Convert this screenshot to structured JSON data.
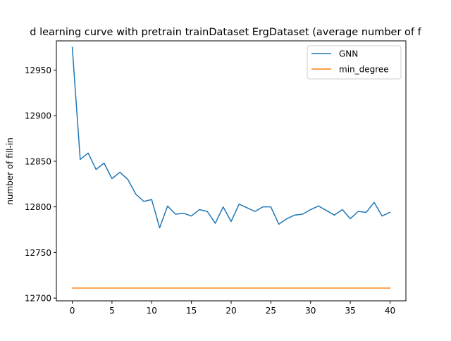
{
  "chart_data": {
    "type": "line",
    "title": "d learning curve with pretrain trainDataset ErgDataset (average number of f",
    "xlabel": "",
    "ylabel": "number of fill-in",
    "xlim": [
      -2,
      42
    ],
    "ylim": [
      12697,
      12982
    ],
    "xticks": [
      0,
      5,
      10,
      15,
      20,
      25,
      30,
      35,
      40
    ],
    "yticks": [
      12700,
      12750,
      12800,
      12850,
      12900,
      12950
    ],
    "grid": false,
    "legend": "top-right",
    "x": [
      0,
      1,
      2,
      3,
      4,
      5,
      6,
      7,
      8,
      9,
      10,
      11,
      12,
      13,
      14,
      15,
      16,
      17,
      18,
      19,
      20,
      21,
      22,
      23,
      24,
      25,
      26,
      27,
      28,
      29,
      30,
      31,
      32,
      33,
      34,
      35,
      36,
      37,
      38,
      39,
      40
    ],
    "series": [
      {
        "name": "GNN",
        "color": "#1f77b4",
        "values": [
          12975,
          12852,
          12859,
          12841,
          12848,
          12831,
          12838,
          12830,
          12814,
          12806,
          12808,
          12777,
          12801,
          12792,
          12793,
          12790,
          12797,
          12795,
          12782,
          12800,
          12784,
          12803,
          12799,
          12795,
          12800,
          12800,
          12781,
          12787,
          12791,
          12792,
          12797,
          12801,
          12796,
          12791,
          12797,
          12787,
          12795,
          12794,
          12805,
          12790,
          12794
        ]
      },
      {
        "name": "min_degree",
        "color": "#ff7f0e",
        "values": [
          12711,
          12711,
          12711,
          12711,
          12711,
          12711,
          12711,
          12711,
          12711,
          12711,
          12711,
          12711,
          12711,
          12711,
          12711,
          12711,
          12711,
          12711,
          12711,
          12711,
          12711,
          12711,
          12711,
          12711,
          12711,
          12711,
          12711,
          12711,
          12711,
          12711,
          12711,
          12711,
          12711,
          12711,
          12711,
          12711,
          12711,
          12711,
          12711,
          12711,
          12711
        ]
      }
    ]
  }
}
